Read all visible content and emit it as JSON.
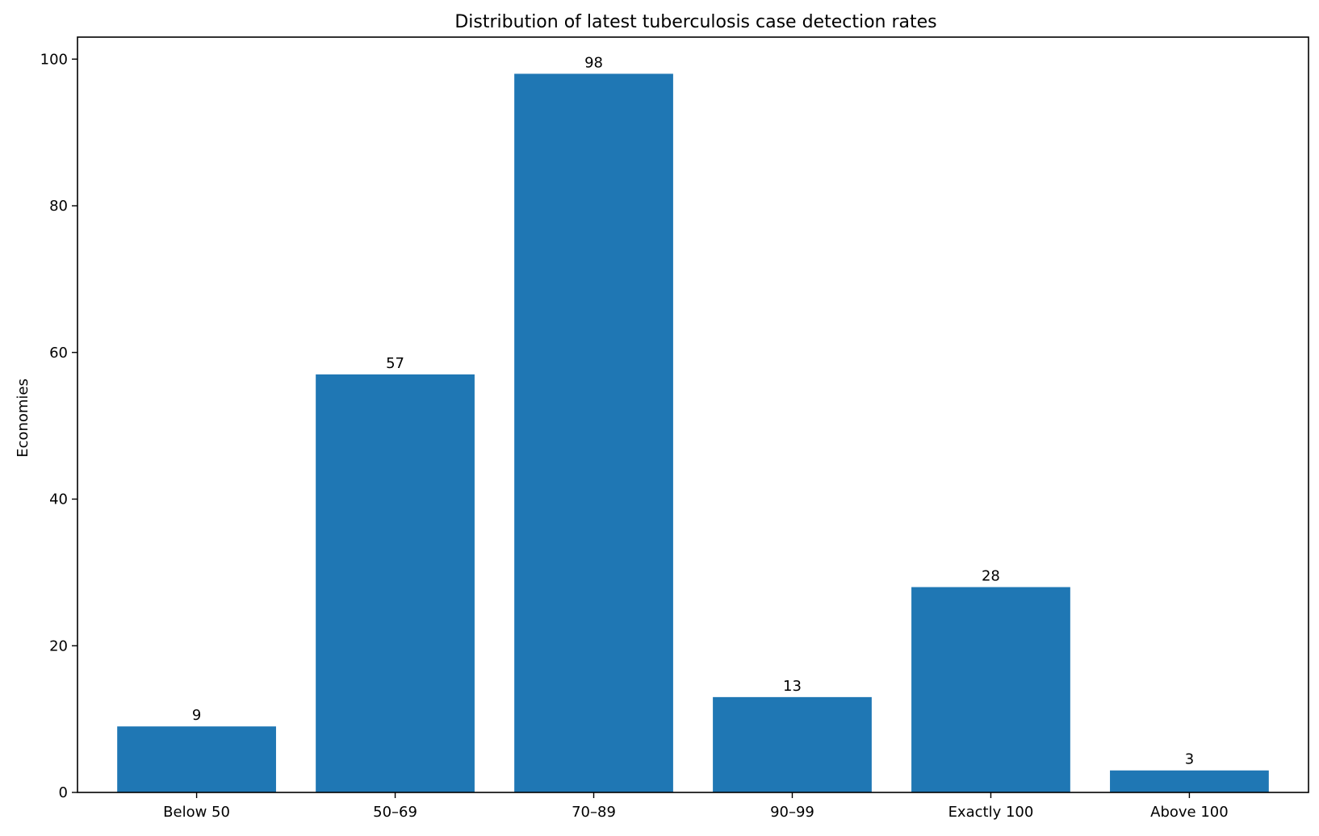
{
  "chart_data": {
    "type": "bar",
    "title": "Distribution of latest tuberculosis case detection rates",
    "xlabel": "",
    "ylabel": "Economies",
    "categories": [
      "Below 50",
      "50–69",
      "70–89",
      "90–99",
      "Exactly 100",
      "Above 100"
    ],
    "values": [
      9,
      57,
      98,
      13,
      28,
      3
    ],
    "ylim": [
      0,
      103
    ],
    "yticks": [
      0,
      20,
      40,
      60,
      80,
      100
    ],
    "bar_color": "#1f77b4",
    "grid": false,
    "legend": "none",
    "data_labels": true
  }
}
